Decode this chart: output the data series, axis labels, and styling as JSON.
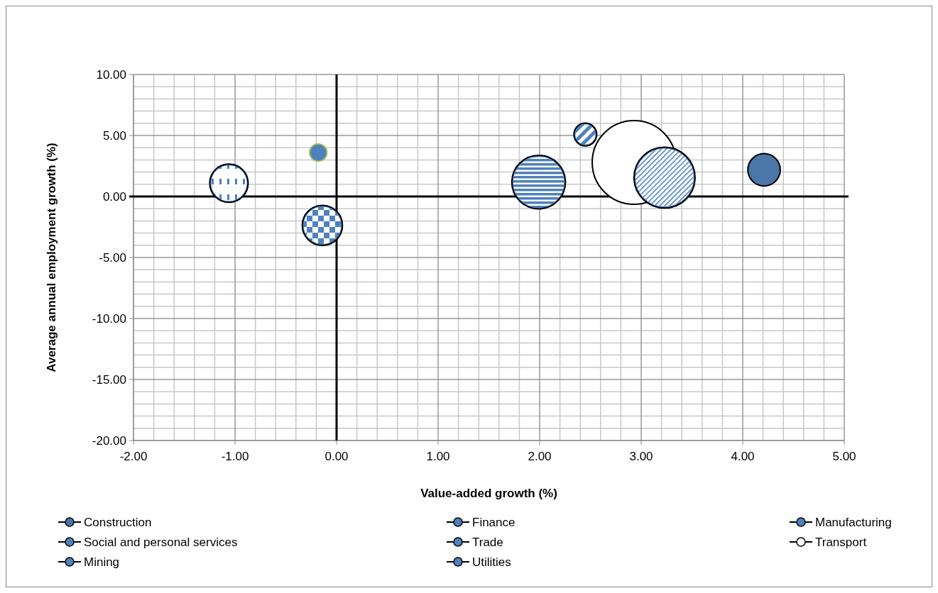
{
  "chart_data": {
    "type": "bubble",
    "xlabel": "Value-added growth (%)",
    "ylabel": "Average annual employment  growth (%)",
    "xlim": [
      -2,
      5
    ],
    "xticks": [
      {
        "value": -2,
        "label": "-2.00"
      },
      {
        "value": -1,
        "label": "-1.00"
      },
      {
        "value": 0,
        "label": "0.00"
      },
      {
        "value": 1,
        "label": "1.00"
      },
      {
        "value": 2,
        "label": "2.00"
      },
      {
        "value": 3,
        "label": "3.00"
      },
      {
        "value": 4,
        "label": "4.00"
      },
      {
        "value": 5,
        "label": "5.00"
      }
    ],
    "ylim": [
      -20,
      10
    ],
    "yticks": [
      {
        "value": -20,
        "label": "-20.00"
      },
      {
        "value": -15,
        "label": "-15.00"
      },
      {
        "value": -10,
        "label": "-10.00"
      },
      {
        "value": -5,
        "label": "-5.00"
      },
      {
        "value": 0,
        "label": "0.00"
      },
      {
        "value": 5,
        "label": "5.00"
      },
      {
        "value": 10,
        "label": "10.00"
      }
    ],
    "grid": true,
    "legend": "bottom",
    "series": [
      {
        "name": "Construction",
        "color": "#4a76a8",
        "x": [
          4.21
        ],
        "values": [
          2.19
        ],
        "sizes": [
          0.15
        ]
      },
      {
        "name": "Finance",
        "color": "#4f81bd",
        "x": [
          3.23
        ],
        "values": [
          1.55
        ],
        "sizes": [
          0.53
        ]
      },
      {
        "name": "Manufacturing",
        "color": "#4f81bd",
        "x": [
          -0.14
        ],
        "values": [
          -2.37
        ],
        "sizes": [
          0.23
        ]
      },
      {
        "name": "Social and personal services",
        "color": "#4f81bd",
        "x": [
          2.45
        ],
        "values": [
          5.08
        ],
        "sizes": [
          0.074
        ]
      },
      {
        "name": "Trade",
        "color": "#4f81bd",
        "x": [
          1.99
        ],
        "values": [
          1.18
        ],
        "sizes": [
          0.41
        ]
      },
      {
        "name": "Transport",
        "color": "#ffffff",
        "x": [
          2.93
        ],
        "values": [
          2.79
        ],
        "sizes": [
          1
        ]
      },
      {
        "name": "Mining",
        "color": "#4f81bd",
        "x": [
          -1.06
        ],
        "values": [
          1.09
        ],
        "sizes": [
          0.21
        ]
      },
      {
        "name": "Utilities",
        "color": "#4f81bd",
        "x": [
          -0.18
        ],
        "values": [
          3.6
        ],
        "sizes": [
          0.042
        ]
      }
    ]
  }
}
